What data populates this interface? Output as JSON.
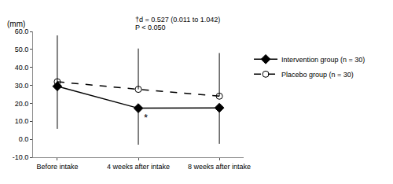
{
  "chart_data": {
    "type": "line",
    "y_label": "(mm)",
    "categories": [
      "Before intake",
      "4 weeks after intake",
      "8 weeks after intake"
    ],
    "series": [
      {
        "name": "Intervention group (n = 30)",
        "color": "#000000",
        "marker": "diamond",
        "line_style": "solid",
        "values": [
          29.5,
          17.3,
          17.5
        ],
        "error_minus": [
          23.7,
          20.3,
          20.0
        ]
      },
      {
        "name": "Placebo group (n = 30)",
        "color": "#000000",
        "marker": "circle-open",
        "line_style": "dash",
        "values": [
          32.0,
          27.8,
          24.0
        ],
        "error_plus": [
          25.8,
          22.7,
          24.0
        ]
      }
    ],
    "ylim": [
      -10,
      60
    ],
    "yticks": [
      {
        "value": -10,
        "label": "-10.0"
      },
      {
        "value": 0,
        "label": "0.0"
      },
      {
        "value": 10,
        "label": "10.0"
      },
      {
        "value": 20,
        "label": "20.0"
      },
      {
        "value": 30,
        "label": "30.0"
      },
      {
        "value": 40,
        "label": "40.0"
      },
      {
        "value": 50,
        "label": "50.0"
      },
      {
        "value": 60,
        "label": "60.0"
      }
    ],
    "grid": false,
    "legend": "right",
    "annotations": [
      {
        "text": "P < 0.050",
        "category": "4 weeks after intake"
      },
      {
        "text": "†d = 0.527 (0.011 to 1.042)",
        "category": "4 weeks after intake"
      },
      {
        "text": "*",
        "category": "4 weeks after intake",
        "series": "Intervention group (n = 30)"
      }
    ]
  }
}
